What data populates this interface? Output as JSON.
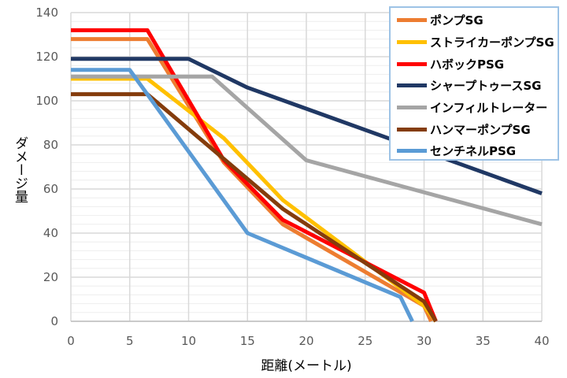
{
  "chart_data": {
    "type": "line",
    "title": "",
    "xlabel": "距離(メートル)",
    "ylabel": "ダメージ量",
    "xlim": [
      0,
      40
    ],
    "ylim": [
      0,
      140
    ],
    "xticks": [
      0,
      5,
      10,
      15,
      20,
      25,
      30,
      35,
      40
    ],
    "yticks": [
      0,
      20,
      40,
      60,
      80,
      100,
      120,
      140
    ],
    "grid": true,
    "legend": "top-right",
    "series": [
      {
        "name": "ポンプSG",
        "color": "#ED7D31",
        "points": [
          [
            0,
            128
          ],
          [
            6.5,
            128
          ],
          [
            13,
            72
          ],
          [
            18,
            44
          ],
          [
            30,
            7
          ],
          [
            30.6,
            0
          ]
        ]
      },
      {
        "name": "ストライカーポンプSG",
        "color": "#FFC000",
        "points": [
          [
            0,
            110
          ],
          [
            6.5,
            110
          ],
          [
            13,
            83
          ],
          [
            18,
            55
          ],
          [
            30,
            7
          ],
          [
            31,
            0
          ]
        ]
      },
      {
        "name": "ハボックPSG",
        "color": "#FF0000",
        "points": [
          [
            0,
            132
          ],
          [
            6.5,
            132
          ],
          [
            13,
            73
          ],
          [
            18,
            46
          ],
          [
            30,
            13
          ],
          [
            31,
            0
          ]
        ]
      },
      {
        "name": "シャープトゥースSG",
        "color": "#203864",
        "points": [
          [
            0,
            119
          ],
          [
            10,
            119
          ],
          [
            15,
            106
          ],
          [
            40,
            58
          ]
        ]
      },
      {
        "name": "インフィルトレーター",
        "color": "#A5A5A5",
        "points": [
          [
            0,
            111
          ],
          [
            12,
            111
          ],
          [
            20,
            73
          ],
          [
            40,
            44
          ]
        ]
      },
      {
        "name": "ハンマーポンプSG",
        "color": "#843C0C",
        "points": [
          [
            0,
            103
          ],
          [
            6.5,
            103
          ],
          [
            18,
            51
          ],
          [
            30,
            9
          ],
          [
            31,
            0
          ]
        ]
      },
      {
        "name": "センチネルPSG",
        "color": "#5B9BD5",
        "points": [
          [
            0,
            114
          ],
          [
            5,
            114
          ],
          [
            15,
            40
          ],
          [
            28,
            11
          ],
          [
            29,
            0
          ]
        ]
      }
    ]
  }
}
